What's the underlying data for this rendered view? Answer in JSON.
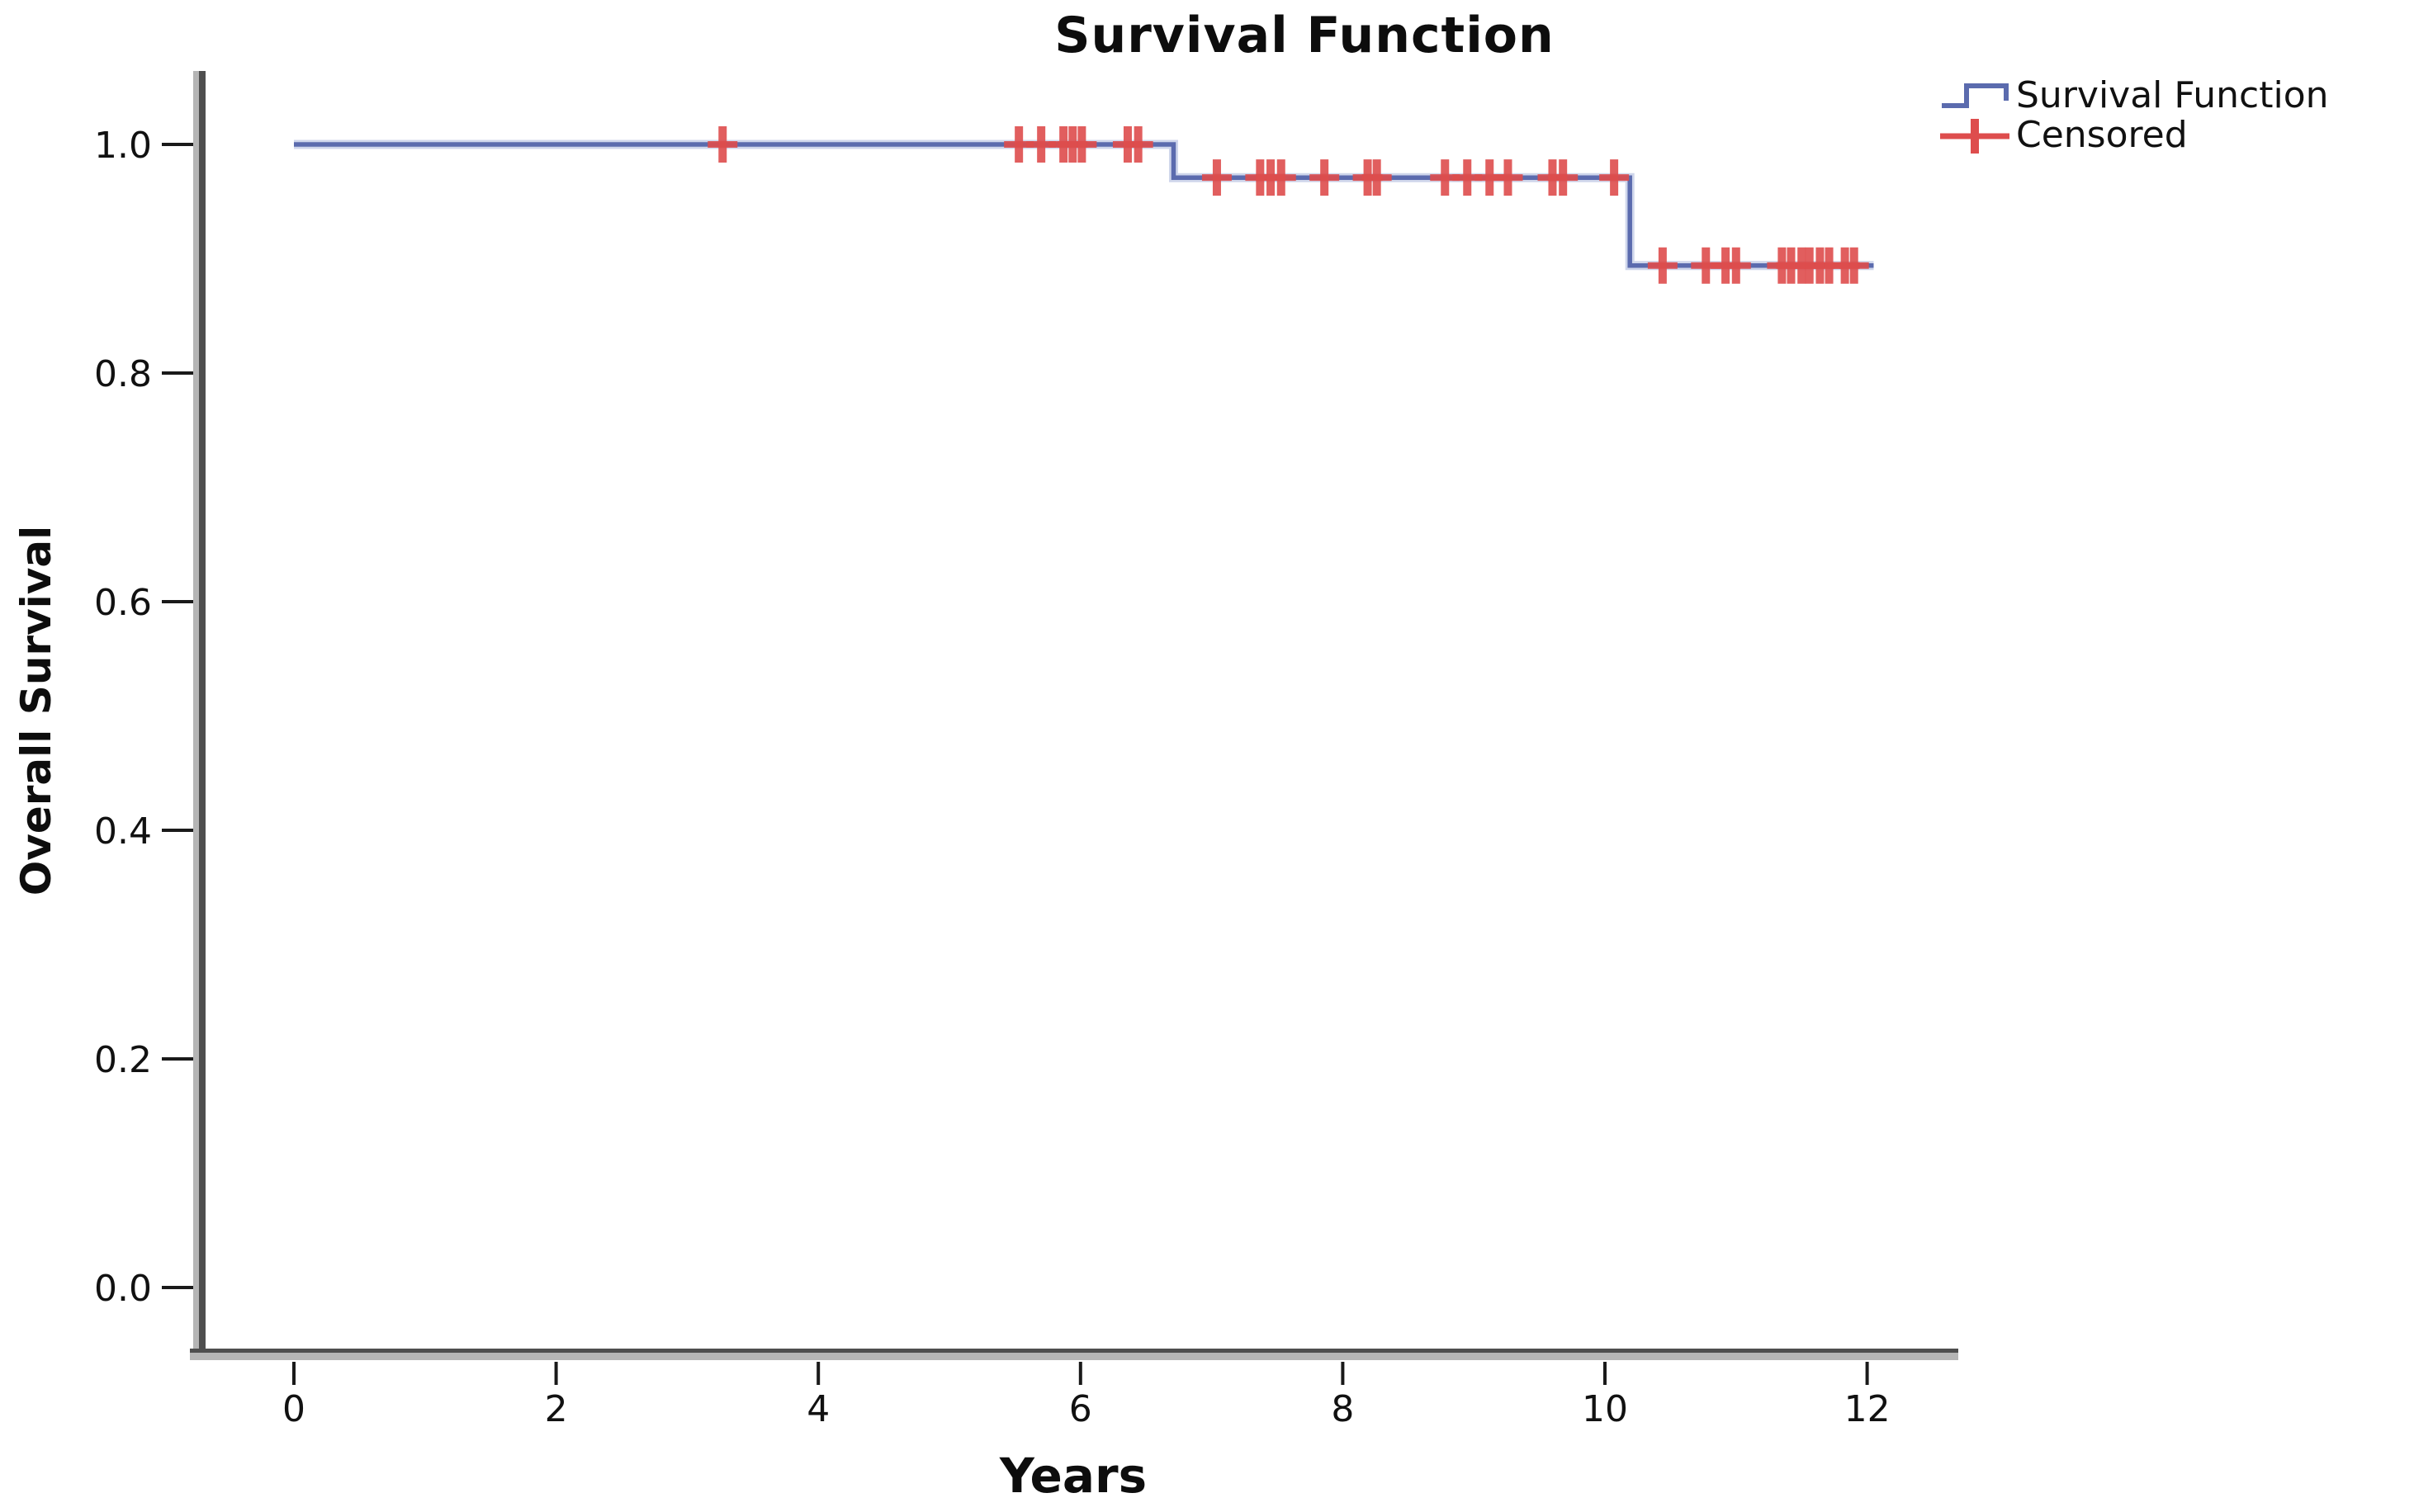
{
  "figure": {
    "title": "Survival Function"
  },
  "legend": {
    "items": [
      {
        "label": "Survival Function",
        "marker": "step-line",
        "color": "#5b6bae"
      },
      {
        "label": "Censored",
        "marker": "plus",
        "color": "#de4d4d"
      }
    ]
  },
  "chart_data": {
    "type": "line",
    "variant": "kaplan_meier_step",
    "title": "Survival Function",
    "xlabel": "Years",
    "ylabel": "Overall Survival",
    "xlim": [
      0,
      12.6
    ],
    "ylim": [
      0.0,
      1.04
    ],
    "grid": false,
    "legend_position": "top-right",
    "xticks": {
      "values": [
        0,
        2,
        4,
        6,
        8,
        10,
        12
      ],
      "labels": [
        "0",
        "2",
        "4",
        "6",
        "8",
        "10",
        "12"
      ]
    },
    "yticks": {
      "values": [
        1.0,
        0.8,
        0.6,
        0.4,
        0.2,
        0.0
      ],
      "labels": [
        "1.0",
        "0.8",
        "0.6",
        "0.4",
        "0.2",
        "0.0"
      ]
    },
    "series": [
      {
        "name": "Survival Function",
        "color": "#5b6bae",
        "halo_color": "#c3cce6",
        "type": "step",
        "points": [
          [
            0,
            1.0
          ],
          [
            6.71,
            1.0
          ],
          [
            6.71,
            0.971
          ],
          [
            10.19,
            0.971
          ],
          [
            10.19,
            0.894
          ],
          [
            12.05,
            0.894
          ]
        ]
      }
    ],
    "censored": {
      "name": "Censored",
      "color": "#de4d4d",
      "marker": "plus",
      "points": [
        [
          3.27,
          1.0
        ],
        [
          5.53,
          1.0
        ],
        [
          5.7,
          1.0
        ],
        [
          5.87,
          1.0
        ],
        [
          5.94,
          1.0
        ],
        [
          6.01,
          1.0
        ],
        [
          6.36,
          1.0
        ],
        [
          6.44,
          1.0
        ],
        [
          7.04,
          0.971
        ],
        [
          7.37,
          0.971
        ],
        [
          7.45,
          0.971
        ],
        [
          7.53,
          0.971
        ],
        [
          7.86,
          0.971
        ],
        [
          8.19,
          0.971
        ],
        [
          8.26,
          0.971
        ],
        [
          8.78,
          0.971
        ],
        [
          8.95,
          0.971
        ],
        [
          9.12,
          0.971
        ],
        [
          9.26,
          0.971
        ],
        [
          9.6,
          0.971
        ],
        [
          9.68,
          0.971
        ],
        [
          10.07,
          0.971
        ],
        [
          10.44,
          0.894
        ],
        [
          10.77,
          0.894
        ],
        [
          10.92,
          0.894
        ],
        [
          11.0,
          0.894
        ],
        [
          11.35,
          0.894
        ],
        [
          11.42,
          0.894
        ],
        [
          11.5,
          0.894
        ],
        [
          11.56,
          0.894
        ],
        [
          11.64,
          0.894
        ],
        [
          11.71,
          0.894
        ],
        [
          11.83,
          0.894
        ],
        [
          11.9,
          0.894
        ]
      ]
    },
    "axis_colors": {
      "light": "#b5b5b5",
      "dark": "#4e4e4e",
      "tick": "#1a1a1a"
    }
  }
}
